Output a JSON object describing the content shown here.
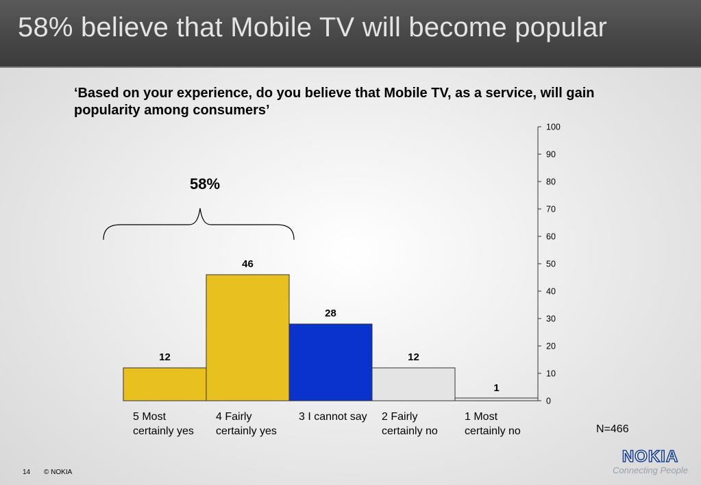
{
  "slide": {
    "title": "58% believe that  Mobile TV will become popular",
    "question": "‘Based on your experience, do you believe that Mobile TV, as a service, will gain popularity among consumers’",
    "bracket_label": "58%",
    "n_label": "N=466",
    "page_number": "14",
    "copyright": "© NOKIA",
    "logo_text": "NOKIA",
    "logo_tagline": "Connecting People"
  },
  "colors": {
    "header": "#4a4a4a",
    "yes": "#e8c020",
    "cannot_say": "#0a32cc",
    "no": "#e4e4e4",
    "logo": "#1b3f94"
  },
  "chart_data": {
    "type": "bar",
    "categories": [
      "5 Most\ncertainly yes",
      "4 Fairly\ncertainly yes",
      "3 I cannot say",
      "2 Fairly\ncertainly no",
      "1 Most\ncertainly no"
    ],
    "values": [
      12,
      46,
      28,
      12,
      1
    ],
    "data_labels": [
      "12",
      "46",
      "28",
      "12",
      "1"
    ],
    "bar_colors": [
      "#e8c020",
      "#e8c020",
      "#0a32cc",
      "#e4e4e4",
      "#e4e4e4"
    ],
    "ylim": [
      0,
      100
    ],
    "yticks": [
      "0",
      "10",
      "20",
      "30",
      "40",
      "50",
      "60",
      "70",
      "80",
      "90",
      "100"
    ],
    "y_axis_side": "right",
    "grid": false,
    "legend": "none"
  }
}
